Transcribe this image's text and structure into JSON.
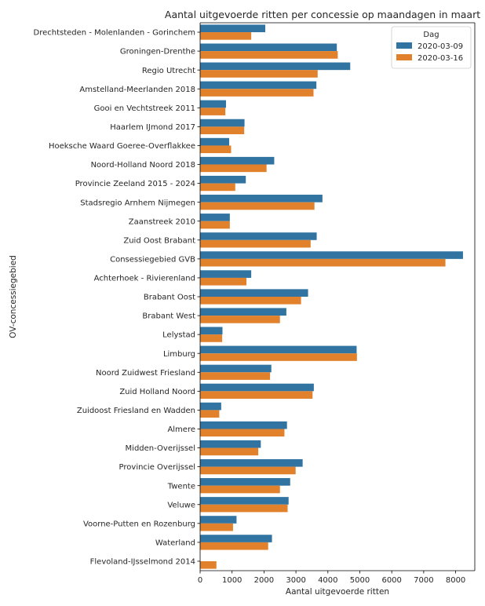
{
  "chart_data": {
    "type": "bar",
    "orientation": "horizontal",
    "title": "Aantal uitgevoerde ritten per concessie op maandagen in maart",
    "xlabel": "Aantal uitgevoerde ritten",
    "ylabel": "OV-concessiegebied",
    "xlim": [
      0,
      8600
    ],
    "xticks": [
      0,
      1000,
      2000,
      3000,
      4000,
      5000,
      6000,
      7000,
      8000
    ],
    "grid": false,
    "legend": {
      "title": "Dag",
      "placement": "top-right"
    },
    "categories": [
      "Drechtsteden - Molenlanden - Gorinchem",
      "Groningen-Drenthe",
      "Regio Utrecht",
      "Amstelland-Meerlanden 2018",
      "Gooi en Vechtstreek 2011",
      "Haarlem IJmond 2017",
      "Hoeksche Waard Goeree-Overflakkee",
      "Noord-Holland Noord 2018",
      "Provincie Zeeland 2015 - 2024",
      "Stadsregio Arnhem Nijmegen",
      "Zaanstreek 2010",
      "Zuid Oost Brabant",
      "Consessiegebied GVB",
      "Achterhoek - Rivierenland",
      "Brabant Oost",
      "Brabant West",
      "Lelystad",
      "Limburg",
      "Noord Zuidwest Friesland",
      "Zuid Holland Noord",
      "Zuidoost Friesland en Wadden",
      "Almere",
      "Midden-Overijssel",
      "Provincie Overijssel",
      "Twente",
      "Veluwe",
      "Voorne-Putten en Rozenburg",
      "Waterland",
      "Flevoland-IJsselmond 2014"
    ],
    "series": [
      {
        "name": "2020-03-09",
        "color": "#3274a1",
        "values": [
          2040,
          4280,
          4700,
          3640,
          810,
          1390,
          910,
          2320,
          1430,
          3830,
          930,
          3650,
          8230,
          1600,
          3380,
          2700,
          700,
          4900,
          2230,
          3560,
          660,
          2720,
          1900,
          3210,
          2820,
          2770,
          1140,
          2250,
          null
        ]
      },
      {
        "name": "2020-03-16",
        "color": "#e1812c",
        "values": [
          1600,
          4310,
          3680,
          3550,
          790,
          1380,
          970,
          2080,
          1100,
          3580,
          930,
          3460,
          7680,
          1450,
          3160,
          2500,
          690,
          4910,
          2190,
          3520,
          600,
          2640,
          1820,
          2990,
          2500,
          2740,
          1030,
          2130,
          510
        ]
      }
    ]
  }
}
